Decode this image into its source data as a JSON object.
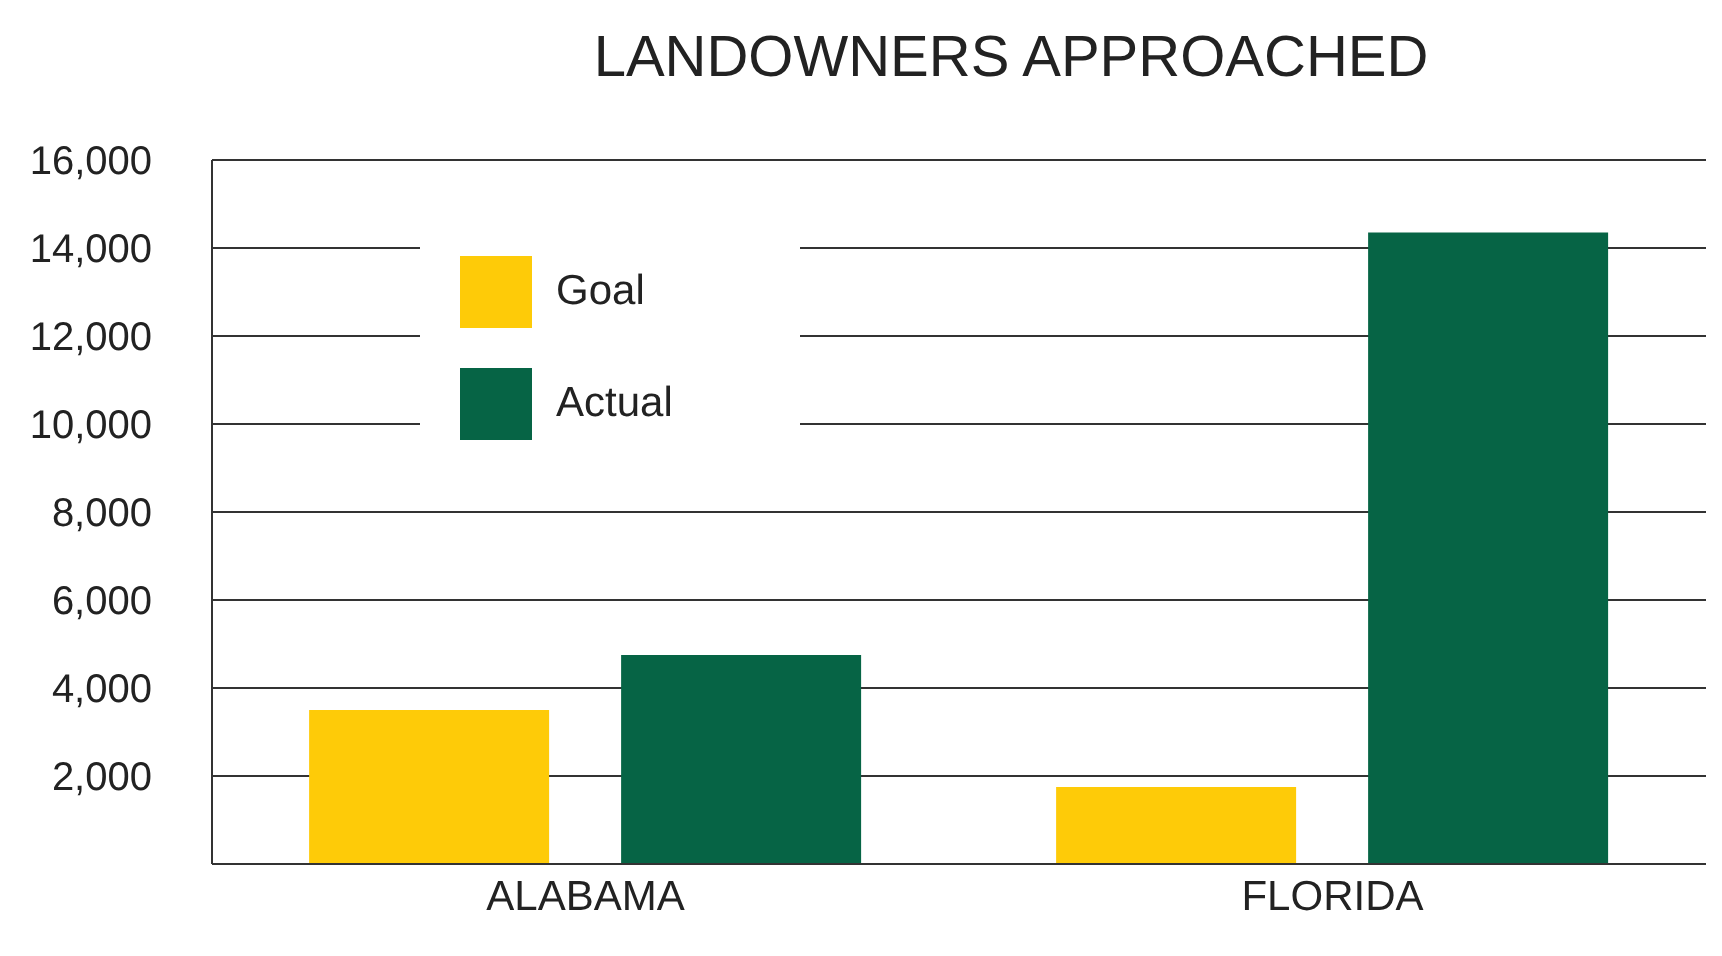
{
  "chart_data": {
    "type": "bar",
    "title": "LANDOWNERS APPROACHED",
    "categories": [
      "ALABAMA",
      "FLORIDA"
    ],
    "series": [
      {
        "name": "Goal",
        "color": "#fecb08",
        "values": [
          3500,
          1750
        ]
      },
      {
        "name": "Actual",
        "color": "#066445",
        "values": [
          4750,
          14350
        ]
      }
    ],
    "ylim": [
      0,
      16000
    ],
    "yticks": [
      {
        "value": 2000,
        "label": "2,000"
      },
      {
        "value": 4000,
        "label": "4,000"
      },
      {
        "value": 6000,
        "label": "6,000"
      },
      {
        "value": 8000,
        "label": "8,000"
      },
      {
        "value": 10000,
        "label": "10,000"
      },
      {
        "value": 12000,
        "label": "12,000"
      },
      {
        "value": 14000,
        "label": "14,000"
      },
      {
        "value": 16000,
        "label": "16,000"
      }
    ],
    "grid": "y",
    "legend": "top left"
  }
}
